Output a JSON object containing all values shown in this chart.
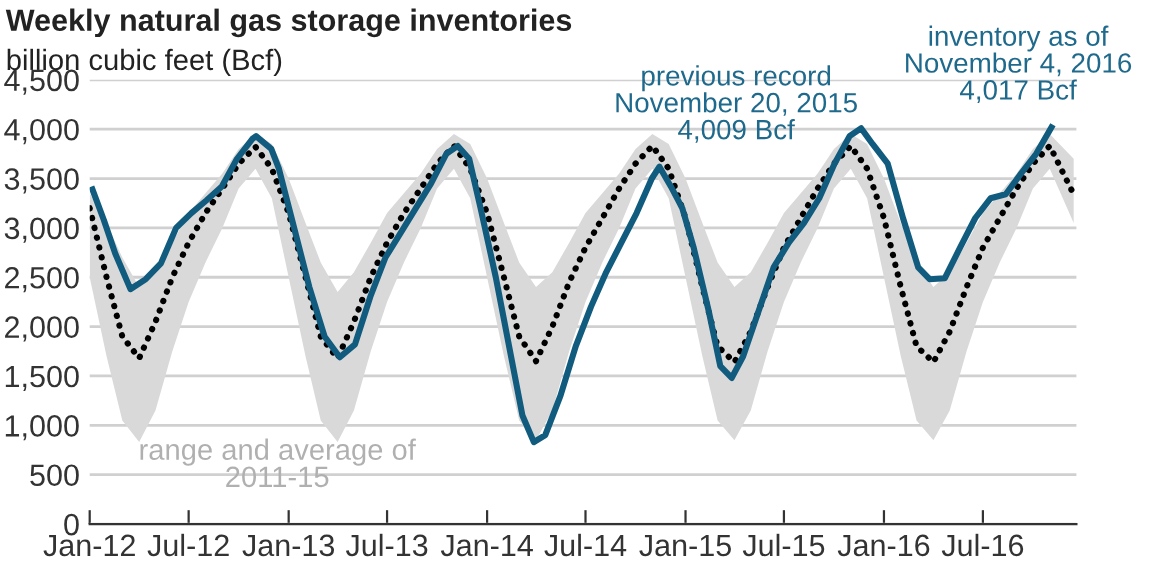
{
  "chart_data": {
    "type": "line",
    "title": "Weekly natural gas storage inventories",
    "subtitle": "billion cubic feet (Bcf)",
    "xlim": [
      "2012-01-01",
      "2016-12-20"
    ],
    "xticks": [
      {
        "value": "2012-01-01",
        "label": "Jan-12"
      },
      {
        "value": "2012-07-01",
        "label": "Jul-12"
      },
      {
        "value": "2013-01-01",
        "label": "Jan-13"
      },
      {
        "value": "2013-07-01",
        "label": "Jul-13"
      },
      {
        "value": "2014-01-01",
        "label": "Jan-14"
      },
      {
        "value": "2014-07-01",
        "label": "Jul-14"
      },
      {
        "value": "2015-01-01",
        "label": "Jan-15"
      },
      {
        "value": "2015-07-01",
        "label": "Jul-15"
      },
      {
        "value": "2016-01-01",
        "label": "Jan-16"
      },
      {
        "value": "2016-07-01",
        "label": "Jul-16"
      }
    ],
    "ylim": [
      0,
      4500
    ],
    "yticks": [
      0,
      500,
      {
        "value": 1000,
        "label": "1,000"
      },
      {
        "value": 1500,
        "label": "1,500"
      },
      {
        "value": 2000,
        "label": "2,000"
      },
      {
        "value": 2500,
        "label": "2,500"
      },
      {
        "value": 3000,
        "label": "3,000"
      },
      {
        "value": 3500,
        "label": "3,500"
      },
      {
        "value": 4000,
        "label": "4,000"
      },
      {
        "value": 4500,
        "label": "4,500"
      }
    ],
    "grid": "y",
    "series": [
      {
        "color": "#000000",
        "line_style": "dotted",
        "x": [
          "2012-01-01",
          "2012-02-01",
          "2012-03-01",
          "2012-04-01",
          "2012-05-01",
          "2012-06-01",
          "2012-07-01",
          "2012-08-01",
          "2012-09-01",
          "2012-10-01",
          "2012-11-01",
          "2012-12-01",
          "2013-01-01",
          "2013-02-01",
          "2013-03-01",
          "2013-04-01",
          "2013-05-01",
          "2013-06-01",
          "2013-07-01",
          "2013-08-01",
          "2013-09-01",
          "2013-10-01",
          "2013-11-01",
          "2013-12-01",
          "2014-01-01",
          "2014-02-01",
          "2014-03-01",
          "2014-04-01",
          "2014-05-01",
          "2014-06-01",
          "2014-07-01",
          "2014-08-01",
          "2014-09-01",
          "2014-10-01",
          "2014-11-01",
          "2014-12-01",
          "2015-01-01",
          "2015-02-01",
          "2015-03-01",
          "2015-04-01",
          "2015-05-01",
          "2015-06-01",
          "2015-07-01",
          "2015-08-01",
          "2015-09-01",
          "2015-10-01",
          "2015-11-01",
          "2015-12-01",
          "2016-01-01",
          "2016-02-01",
          "2016-03-01",
          "2016-04-01",
          "2016-05-01",
          "2016-06-01",
          "2016-07-01",
          "2016-08-01",
          "2016-09-01",
          "2016-10-01",
          "2016-11-01",
          "2016-12-15"
        ],
        "values": [
          3200,
          2500,
          1900,
          1680,
          2050,
          2500,
          2850,
          3150,
          3400,
          3650,
          3820,
          3600,
          3150,
          2500,
          1900,
          1680,
          2050,
          2500,
          2850,
          3150,
          3400,
          3650,
          3830,
          3600,
          3150,
          2500,
          1900,
          1650,
          2000,
          2450,
          2800,
          3100,
          3400,
          3650,
          3830,
          3600,
          3100,
          2400,
          1800,
          1640,
          1950,
          2400,
          2800,
          3100,
          3400,
          3650,
          3830,
          3600,
          3100,
          2400,
          1800,
          1640,
          1950,
          2400,
          2800,
          3100,
          3400,
          3650,
          3830,
          3340
        ],
        "lower": [
          2500,
          1700,
          1050,
          830,
          1150,
          1750,
          2250,
          2650,
          3000,
          3400,
          3600,
          3300,
          2500,
          1700,
          1050,
          830,
          1150,
          1750,
          2250,
          2650,
          3000,
          3400,
          3600,
          3300,
          2500,
          1700,
          1050,
          850,
          1150,
          1750,
          2250,
          2650,
          3000,
          3400,
          3600,
          3300,
          2500,
          1700,
          1050,
          850,
          1150,
          1750,
          2250,
          2650,
          3000,
          3400,
          3600,
          3300,
          2500,
          1700,
          1050,
          850,
          1150,
          1750,
          2250,
          2650,
          3000,
          3400,
          3600,
          3050
        ],
        "upper": [
          3350,
          3050,
          2700,
          2400,
          2550,
          2850,
          3150,
          3350,
          3550,
          3800,
          3950,
          3850,
          3500,
          3050,
          2650,
          2350,
          2550,
          2850,
          3150,
          3350,
          3550,
          3800,
          3950,
          3850,
          3500,
          3050,
          2650,
          2400,
          2550,
          2850,
          3150,
          3350,
          3550,
          3800,
          3950,
          3850,
          3500,
          3050,
          2650,
          2400,
          2550,
          2850,
          3150,
          3350,
          3550,
          3800,
          3950,
          3850,
          3500,
          3050,
          2650,
          2400,
          2550,
          2850,
          3150,
          3350,
          3550,
          3800,
          3950,
          3700
        ]
      },
      {
        "color": "#115b7e",
        "line_style": "solid",
        "x": [
          "2012-01-06",
          "2012-01-27",
          "2012-02-17",
          "2012-03-16",
          "2012-04-13",
          "2012-05-11",
          "2012-06-08",
          "2012-07-06",
          "2012-08-03",
          "2012-08-31",
          "2012-09-28",
          "2012-10-26",
          "2012-11-02",
          "2012-11-30",
          "2012-12-14",
          "2013-01-11",
          "2013-02-08",
          "2013-03-08",
          "2013-04-05",
          "2013-05-03",
          "2013-05-31",
          "2013-06-28",
          "2013-07-26",
          "2013-08-23",
          "2013-09-20",
          "2013-10-18",
          "2013-11-08",
          "2013-11-29",
          "2013-12-20",
          "2014-01-17",
          "2014-02-14",
          "2014-03-07",
          "2014-03-28",
          "2014-04-18",
          "2014-05-16",
          "2014-06-13",
          "2014-07-11",
          "2014-08-08",
          "2014-09-05",
          "2014-10-03",
          "2014-10-31",
          "2014-11-14",
          "2014-12-05",
          "2014-12-26",
          "2015-01-16",
          "2015-02-13",
          "2015-03-06",
          "2015-03-27",
          "2015-04-17",
          "2015-05-15",
          "2015-06-12",
          "2015-07-10",
          "2015-08-07",
          "2015-09-04",
          "2015-10-02",
          "2015-10-30",
          "2015-11-20",
          "2015-12-11",
          "2016-01-08",
          "2016-02-05",
          "2016-03-04",
          "2016-03-25",
          "2016-04-22",
          "2016-05-20",
          "2016-06-17",
          "2016-07-15",
          "2016-08-12",
          "2016-09-09",
          "2016-10-07",
          "2016-11-04"
        ],
        "values": [
          3390,
          3080,
          2740,
          2380,
          2480,
          2640,
          3000,
          3150,
          3280,
          3420,
          3700,
          3900,
          3930,
          3800,
          3600,
          3000,
          2400,
          1900,
          1690,
          1820,
          2300,
          2700,
          2950,
          3200,
          3450,
          3750,
          3830,
          3700,
          3200,
          2500,
          1700,
          1100,
          830,
          900,
          1300,
          1800,
          2200,
          2550,
          2850,
          3150,
          3500,
          3620,
          3420,
          3200,
          2800,
          2150,
          1600,
          1480,
          1700,
          2150,
          2600,
          2850,
          3050,
          3300,
          3650,
          3930,
          4009,
          3850,
          3650,
          3100,
          2600,
          2480,
          2490,
          2800,
          3100,
          3300,
          3340,
          3550,
          3750,
          4017
        ]
      }
    ],
    "annotations": [
      {
        "text": "previous record\nNovember 20, 2015\n4,009 Bcf",
        "x": "2015-11-20",
        "y": 4009
      },
      {
        "text": "inventory as of\nNovember 4, 2016\n4,017 Bcf",
        "x": "2016-11-04",
        "y": 4017
      },
      "range and average of\n2011-15"
    ]
  }
}
